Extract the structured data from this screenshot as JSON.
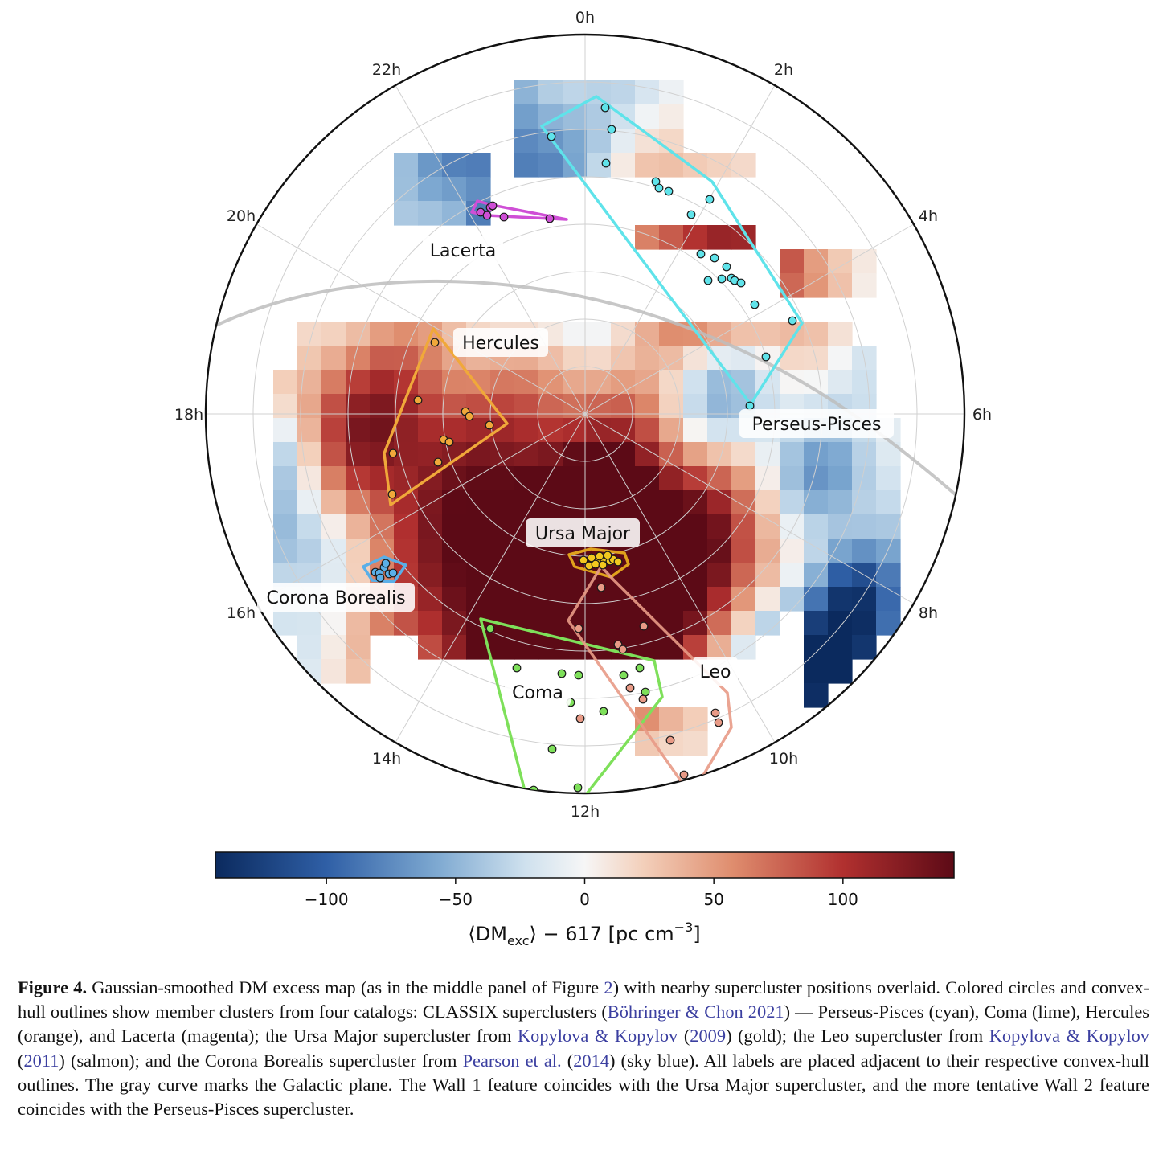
{
  "hour_labels": [
    "0h",
    "2h",
    "4h",
    "6h",
    "8h",
    "10h",
    "12h",
    "14h",
    "16h",
    "18h",
    "20h",
    "22h"
  ],
  "supercluster_labels": {
    "lacerta": "Lacerta",
    "hercules": "Hercules",
    "perseus_pisces": "Perseus-Pisces",
    "ursa_major": "Ursa Major",
    "corona_borealis": "Corona Borealis",
    "coma": "Coma",
    "leo": "Leo"
  },
  "colors": {
    "perseus_pisces": "#5fe3ea",
    "coma": "#7ee05a",
    "hercules": "#f0a83a",
    "lacerta": "#cf4fd6",
    "ursa_major": "#f2c81f",
    "leo": "#e89a86",
    "corona_borealis": "#5aafe8",
    "galactic_plane": "#bdbdbd"
  },
  "colorbar": {
    "ticks": [
      "−100",
      "−50",
      "0",
      "50",
      "100"
    ],
    "tick_values": [
      -100,
      -50,
      0,
      50,
      100
    ],
    "range": [
      -143,
      143
    ],
    "label_main": "⟨DM",
    "label_sub": "exc",
    "label_rest": "⟩ − 617  [pc cm",
    "label_sup": "−3",
    "label_end": "]"
  },
  "caption": {
    "label": "Figure 4.",
    "t1": " Gaussian-smoothed DM excess map (as in the middle panel of Figure ",
    "ref_fig": "2",
    "t2": ") with nearby supercluster positions overlaid. Colored circles and convex-hull outlines show member clusters from four catalogs: CLASSIX superclusters (",
    "cite1": "Böhringer & Chon 2021",
    "t3": ") — Perseus-Pisces (cyan), Coma (lime), Hercules (orange), and Lacerta (magenta); the Ursa Major supercluster from ",
    "cite2a": "Kopylova & Kopylov",
    "t4": " (",
    "cite2b": "2009",
    "t5": ") (gold); the Leo supercluster from ",
    "cite3a": "Kopylova & Kopylov",
    "t6": " (",
    "cite3b": "2011",
    "t7": ") (salmon); and the Corona Borealis supercluster from ",
    "cite4a": "Pearson et al.",
    "t8": " (",
    "cite4b": "2014",
    "t9": ") (sky blue). All labels are placed adjacent to their respective convex-hull outlines. The gray curve marks the Galactic plane. The Wall 1 feature coincides with the Ursa Major supercluster, and the more tentative Wall 2 feature coincides with the Perseus-Pisces supercluster."
  }
}
